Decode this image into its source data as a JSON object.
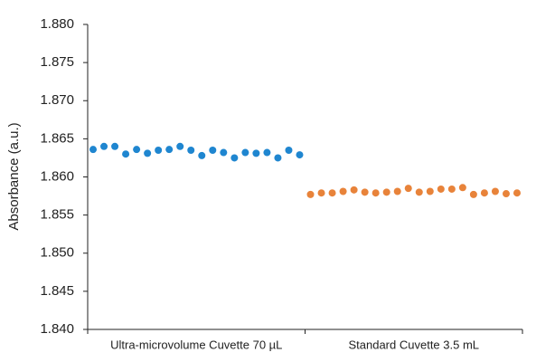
{
  "chart_data": {
    "type": "strip",
    "y_label": "Absorbance (a.u.)",
    "categories": [
      "Ultra-microvolume Cuvette 70 µL",
      "Standard Cuvette 3.5 mL"
    ],
    "series": [
      {
        "color": "#1f86d0",
        "values": [
          1.8636,
          1.864,
          1.864,
          1.863,
          1.8636,
          1.8631,
          1.8635,
          1.8636,
          1.864,
          1.8635,
          1.8628,
          1.8635,
          1.8632,
          1.8625,
          1.8632,
          1.8631,
          1.8632,
          1.8625,
          1.8635,
          1.8629
        ]
      },
      {
        "color": "#e8833a",
        "values": [
          1.8577,
          1.8579,
          1.8579,
          1.8581,
          1.8583,
          1.858,
          1.8579,
          1.858,
          1.8581,
          1.8585,
          1.858,
          1.8581,
          1.8584,
          1.8584,
          1.8586,
          1.8577,
          1.8579,
          1.8581,
          1.8578,
          1.8579
        ]
      }
    ],
    "ylim": [
      1.84,
      1.88
    ],
    "yticks": [
      {
        "value": 1.84,
        "label": "1.840"
      },
      {
        "value": 1.845,
        "label": "1.845"
      },
      {
        "value": 1.85,
        "label": "1.850"
      },
      {
        "value": 1.855,
        "label": "1.855"
      },
      {
        "value": 1.86,
        "label": "1.860"
      },
      {
        "value": 1.865,
        "label": "1.865"
      },
      {
        "value": 1.87,
        "label": "1.870"
      },
      {
        "value": 1.875,
        "label": "1.875"
      },
      {
        "value": 1.88,
        "label": "1.880"
      }
    ],
    "grid": false
  }
}
